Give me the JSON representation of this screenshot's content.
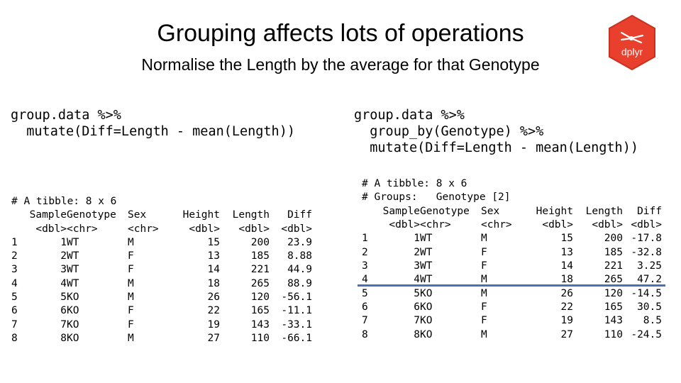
{
  "title": "Grouping affects lots of operations",
  "subtitle": "Normalise the Length by the average for that Genotype",
  "logo": {
    "text": "dplyr",
    "color": "#e8402c"
  },
  "left": {
    "code": [
      "group.data %>%",
      "  mutate(Diff=Length - mean(Length))"
    ],
    "tibble_header": "# A tibble: 8 x 6",
    "columns": [
      "Sample",
      "Genotype",
      "Sex",
      "Height",
      "Length",
      "Diff"
    ],
    "types": [
      "<dbl>",
      "<chr>",
      "<chr>",
      "<dbl>",
      "<dbl>",
      "<dbl>"
    ],
    "rows": [
      {
        "idx": "1",
        "Sample": "1",
        "Genotype": "WT",
        "Sex": "M",
        "Height": "15",
        "Length": "200",
        "Diff": "23.9"
      },
      {
        "idx": "2",
        "Sample": "2",
        "Genotype": "WT",
        "Sex": "F",
        "Height": "13",
        "Length": "185",
        "Diff": "8.88"
      },
      {
        "idx": "3",
        "Sample": "3",
        "Genotype": "WT",
        "Sex": "F",
        "Height": "14",
        "Length": "221",
        "Diff": "44.9"
      },
      {
        "idx": "4",
        "Sample": "4",
        "Genotype": "WT",
        "Sex": "M",
        "Height": "18",
        "Length": "265",
        "Diff": "88.9"
      },
      {
        "idx": "5",
        "Sample": "5",
        "Genotype": "KO",
        "Sex": "M",
        "Height": "26",
        "Length": "120",
        "Diff": "-56.1"
      },
      {
        "idx": "6",
        "Sample": "6",
        "Genotype": "KO",
        "Sex": "F",
        "Height": "22",
        "Length": "165",
        "Diff": "-11.1"
      },
      {
        "idx": "7",
        "Sample": "7",
        "Genotype": "KO",
        "Sex": "F",
        "Height": "19",
        "Length": "143",
        "Diff": "-33.1"
      },
      {
        "idx": "8",
        "Sample": "8",
        "Genotype": "KO",
        "Sex": "M",
        "Height": "27",
        "Length": "110",
        "Diff": "-66.1"
      }
    ]
  },
  "right": {
    "code": [
      "group.data %>%",
      "  group_by(Genotype) %>%",
      "  mutate(Diff=Length - mean(Length))"
    ],
    "tibble_header": "# A tibble: 8 x 6",
    "groups_header": "# Groups:   Genotype [2]",
    "columns": [
      "Sample",
      "Genotype",
      "Sex",
      "Height",
      "Length",
      "Diff"
    ],
    "types": [
      "<dbl>",
      "<chr>",
      "<chr>",
      "<dbl>",
      "<dbl>",
      "<dbl>"
    ],
    "rows": [
      {
        "idx": "1",
        "Sample": "1",
        "Genotype": "WT",
        "Sex": "M",
        "Height": "15",
        "Length": "200",
        "Diff": "-17.8"
      },
      {
        "idx": "2",
        "Sample": "2",
        "Genotype": "WT",
        "Sex": "F",
        "Height": "13",
        "Length": "185",
        "Diff": "-32.8"
      },
      {
        "idx": "3",
        "Sample": "3",
        "Genotype": "WT",
        "Sex": "F",
        "Height": "14",
        "Length": "221",
        "Diff": "3.25"
      },
      {
        "idx": "4",
        "Sample": "4",
        "Genotype": "WT",
        "Sex": "M",
        "Height": "18",
        "Length": "265",
        "Diff": "47.2"
      },
      {
        "idx": "5",
        "Sample": "5",
        "Genotype": "KO",
        "Sex": "M",
        "Height": "26",
        "Length": "120",
        "Diff": "-14.5"
      },
      {
        "idx": "6",
        "Sample": "6",
        "Genotype": "KO",
        "Sex": "F",
        "Height": "22",
        "Length": "165",
        "Diff": "30.5"
      },
      {
        "idx": "7",
        "Sample": "7",
        "Genotype": "KO",
        "Sex": "F",
        "Height": "19",
        "Length": "143",
        "Diff": "8.5"
      },
      {
        "idx": "8",
        "Sample": "8",
        "Genotype": "KO",
        "Sex": "M",
        "Height": "27",
        "Length": "110",
        "Diff": "-24.5"
      }
    ]
  },
  "separator_color": "#4a72b0"
}
